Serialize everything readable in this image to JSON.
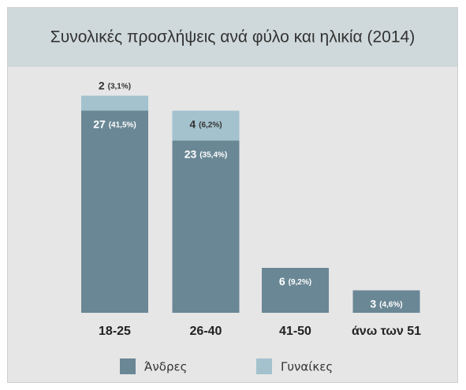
{
  "chart_data": {
    "type": "stacked-bar",
    "title": "Συνολικές προσλήψεις ανά φύλο και ηλικία (2014)",
    "categories": [
      "18-25",
      "26-40",
      "41-50",
      "άνω των 51"
    ],
    "series": [
      {
        "name": "Άνδρες",
        "color": "#6a8795",
        "values": [
          27,
          23,
          6,
          3
        ],
        "value_labels": [
          "27 (41,5%)",
          "23 (35,4%)",
          "6 (9,2%)",
          "3 (4,6%)"
        ]
      },
      {
        "name": "Γυναίκες",
        "color": "#a3c2cd",
        "values": [
          2,
          4,
          0,
          0
        ],
        "value_labels": [
          "2 (3,1%)",
          "4 (6,2%)",
          null,
          null
        ]
      }
    ],
    "legend": "bottom"
  }
}
